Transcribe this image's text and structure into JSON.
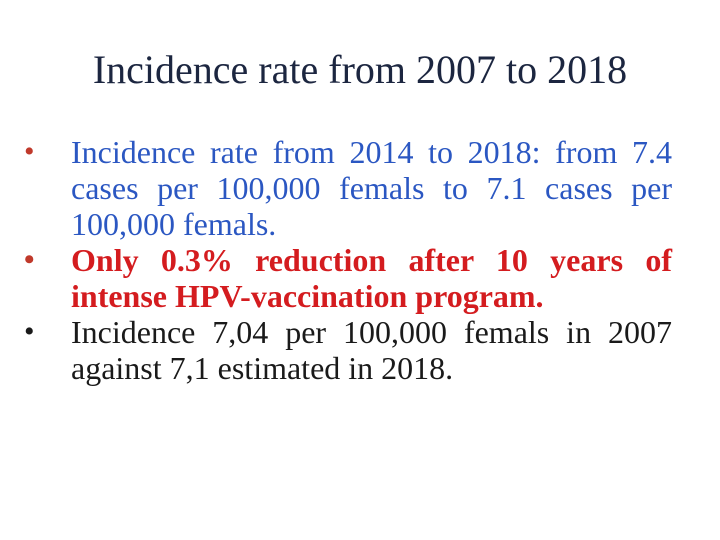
{
  "slide": {
    "title": "Incidence rate from 2007 to 2018",
    "bullets": [
      {
        "text": "Incidence rate from 2014 to 2018: from 7.4 cases per 100,000 femals to 7.1 cases per 100,000 femals.",
        "color": "#2b57c2"
      },
      {
        "text": "Only 0.3% reduction after 10 years of intense HPV-vaccination program.",
        "color": "#d41c1f"
      },
      {
        "text": "Incidence 7,04 per 100,000 femals in 2007 against 7,1 estimated in 2018.",
        "color": "#1a1a1a"
      }
    ],
    "bullet_glyph": "•"
  }
}
